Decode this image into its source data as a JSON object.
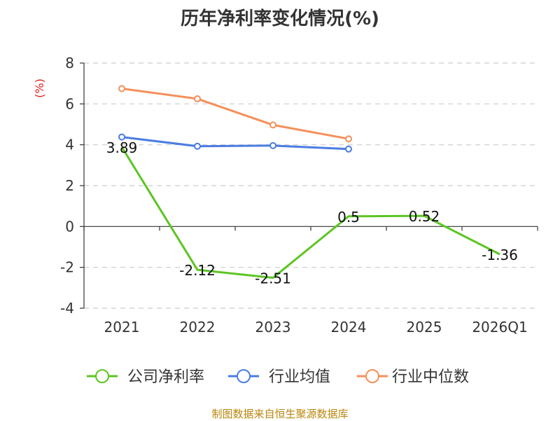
{
  "chart_data": {
    "type": "line",
    "title": "历年净利率变化情况(%)",
    "ylabel": "(%)",
    "xlabel": "",
    "categories": [
      "2021",
      "2022",
      "2023",
      "2024",
      "2025",
      "2026Q1"
    ],
    "ylim": [
      -4,
      8
    ],
    "yticks": [
      -4,
      -2,
      0,
      2,
      4,
      6,
      8
    ],
    "grid": true,
    "legend_position": "bottom",
    "series": [
      {
        "name": "公司净利率",
        "color": "#5cc522",
        "values": [
          3.89,
          -2.12,
          -2.51,
          0.5,
          0.52,
          -1.36
        ],
        "labels": [
          "3.89",
          "-2.12",
          "-2.51",
          "0.5",
          "0.52",
          "-1.36"
        ]
      },
      {
        "name": "行业均值",
        "color": "#4a7de1",
        "values": [
          4.38,
          3.93,
          3.96,
          3.79,
          null,
          null
        ]
      },
      {
        "name": "行业中位数",
        "color": "#f5905a",
        "values": [
          6.75,
          6.25,
          4.97,
          4.29,
          null,
          null
        ]
      }
    ],
    "colors": {
      "ylabel": "#e0201c",
      "grid": "#cccccc",
      "axis": "#333333"
    }
  },
  "source_note": "制图数据来自恒生聚源数据库"
}
